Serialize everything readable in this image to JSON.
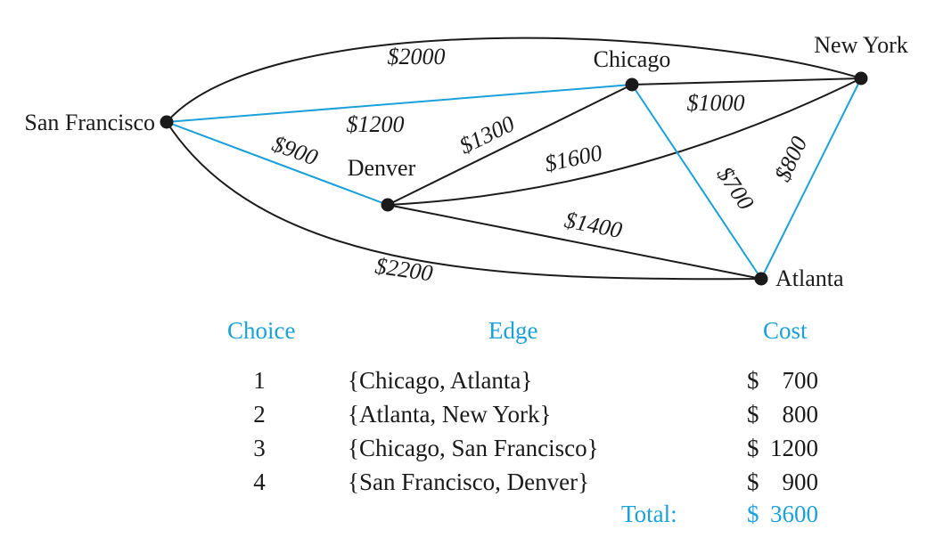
{
  "colors": {
    "highlight": "#1ba1d9",
    "edge": "#1a1a1a",
    "node": "#1a1a1a"
  },
  "graph": {
    "nodes": [
      {
        "id": "sf",
        "label": "San Francisco"
      },
      {
        "id": "chicago",
        "label": "Chicago"
      },
      {
        "id": "newyork",
        "label": "New York"
      },
      {
        "id": "denver",
        "label": "Denver"
      },
      {
        "id": "atlanta",
        "label": "Atlanta"
      }
    ],
    "edges": [
      {
        "from": "sf",
        "to": "newyork",
        "cost": "$2000",
        "highlight": false
      },
      {
        "from": "sf",
        "to": "chicago",
        "cost": "$1200",
        "highlight": true
      },
      {
        "from": "sf",
        "to": "denver",
        "cost": "$900",
        "highlight": true
      },
      {
        "from": "sf",
        "to": "atlanta",
        "cost": "$2200",
        "highlight": false
      },
      {
        "from": "denver",
        "to": "chicago",
        "cost": "$1300",
        "highlight": false
      },
      {
        "from": "denver",
        "to": "newyork",
        "cost": "$1600",
        "highlight": false
      },
      {
        "from": "denver",
        "to": "atlanta",
        "cost": "$1400",
        "highlight": false
      },
      {
        "from": "chicago",
        "to": "newyork",
        "cost": "$1000",
        "highlight": false
      },
      {
        "from": "chicago",
        "to": "atlanta",
        "cost": "$700",
        "highlight": true
      },
      {
        "from": "newyork",
        "to": "atlanta",
        "cost": "$800",
        "highlight": true
      }
    ]
  },
  "table": {
    "headers": {
      "choice": "Choice",
      "edge": "Edge",
      "cost": "Cost"
    },
    "rows": [
      {
        "choice": "1",
        "edge": "{Chicago, Atlanta}",
        "cost_symbol": "$",
        "cost_value": "700"
      },
      {
        "choice": "2",
        "edge": "{Atlanta, New York}",
        "cost_symbol": "$",
        "cost_value": "800"
      },
      {
        "choice": "3",
        "edge": "{Chicago, San Francisco}",
        "cost_symbol": "$",
        "cost_value": "1200"
      },
      {
        "choice": "4",
        "edge": "{San Francisco, Denver}",
        "cost_symbol": "$",
        "cost_value": "900"
      }
    ],
    "total_label": "Total:",
    "total_symbol": "$",
    "total_value": "3600"
  }
}
